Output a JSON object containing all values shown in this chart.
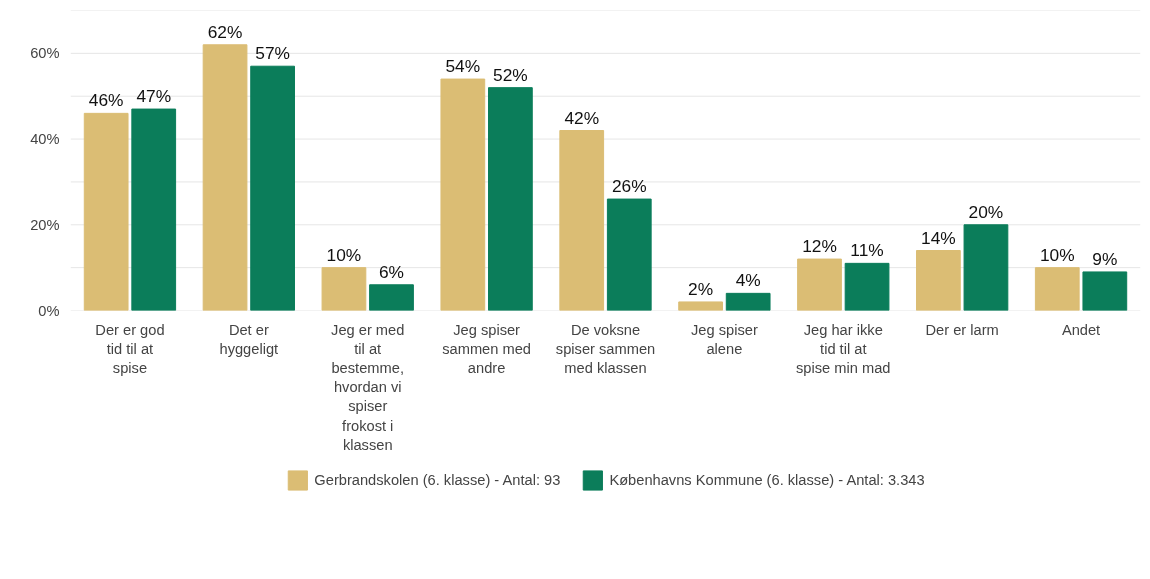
{
  "chart_data": {
    "type": "bar",
    "categories": [
      "Der er god tid til at spise",
      "Det er hyggeligt",
      "Jeg er med til at bestemme, hvordan vi spiser frokost i klassen",
      "Jeg spiser sammen med andre",
      "De voksne spiser sammen med klassen",
      "Jeg spiser alene",
      "Jeg har ikke tid til at spise min mad",
      "Der er larm",
      "Andet"
    ],
    "series": [
      {
        "name": "Gerbrandskolen (6. klasse) - Antal: 93",
        "color": "#dbbd74",
        "values": [
          46,
          62,
          10,
          54,
          42,
          2,
          12,
          14,
          10
        ],
        "value_labels": [
          "46%",
          "62%",
          "10%",
          "54%",
          "42%",
          "2%",
          "12%",
          "14%",
          "10%"
        ]
      },
      {
        "name": "Københavns Kommune (6. klasse) - Antal: 3.343",
        "color": "#0b7d5a",
        "values": [
          47,
          57,
          6,
          52,
          26,
          4,
          11,
          20,
          9
        ],
        "value_labels": [
          "47%",
          "57%",
          "6%",
          "52%",
          "26%",
          "4%",
          "11%",
          "20%",
          "9%"
        ]
      }
    ],
    "ylim": [
      0,
      70
    ],
    "yticks": [
      {
        "value": 0,
        "label": "0%"
      },
      {
        "value": 10,
        "label": null
      },
      {
        "value": 20,
        "label": "20%"
      },
      {
        "value": 30,
        "label": null
      },
      {
        "value": 40,
        "label": "40%"
      },
      {
        "value": 50,
        "label": null
      },
      {
        "value": 60,
        "label": "60%"
      },
      {
        "value": 70,
        "label": null
      }
    ],
    "grid": "y",
    "legend": "bottom"
  }
}
